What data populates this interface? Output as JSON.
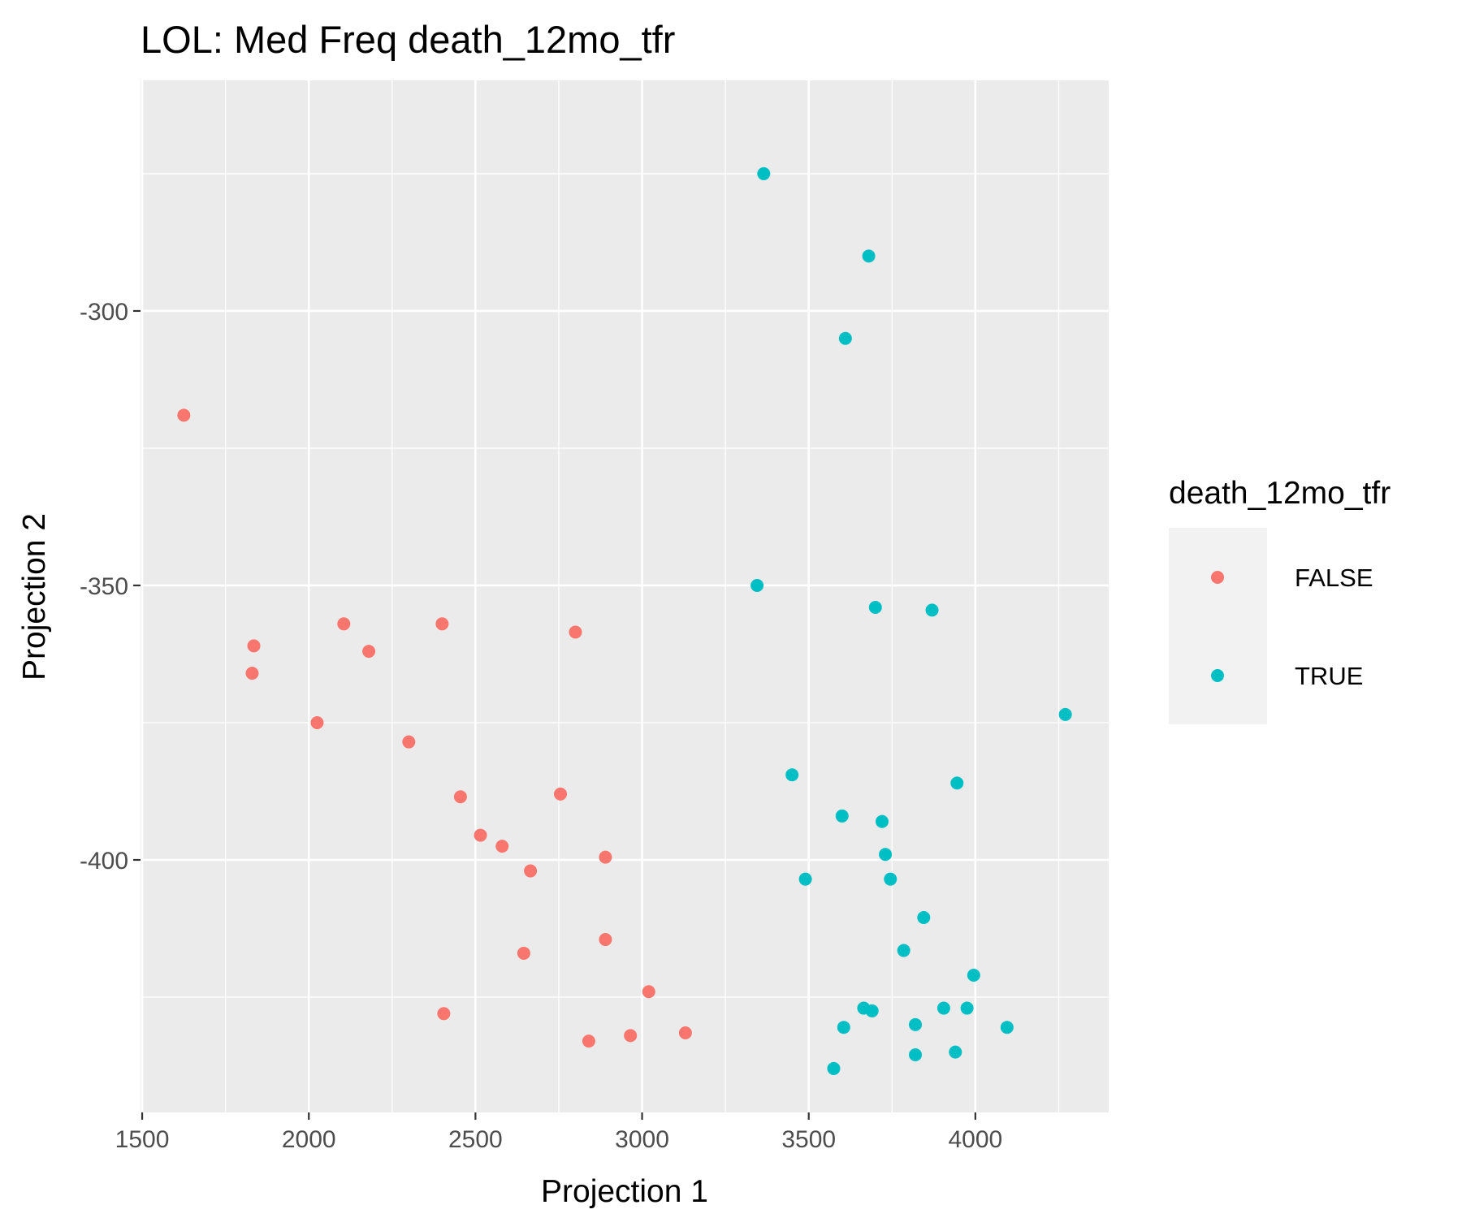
{
  "chart_data": {
    "type": "scatter",
    "title": "LOL: Med Freq death_12mo_tfr",
    "xlabel": "Projection 1",
    "ylabel": "Projection 2",
    "xlim": [
      1495,
      4400
    ],
    "ylim": [
      -446,
      -258
    ],
    "x_ticks": [
      1500,
      2000,
      2500,
      3000,
      3500,
      4000
    ],
    "x_tick_labels": [
      "1500",
      "2000",
      "2500",
      "3000",
      "3500",
      "4000"
    ],
    "y_ticks": [
      -300,
      -350,
      -400
    ],
    "y_tick_labels": [
      "-300",
      "-350",
      "-400"
    ],
    "grid": true,
    "legend": {
      "title": "death_12mo_tfr",
      "position": "right",
      "entries": [
        "FALSE",
        "TRUE"
      ]
    },
    "colors": {
      "FALSE": "#f8766d",
      "TRUE": "#00bfc4"
    },
    "series": [
      {
        "name": "FALSE",
        "points": [
          [
            1625,
            -319
          ],
          [
            1835,
            -361
          ],
          [
            1830,
            -366
          ],
          [
            2105,
            -357
          ],
          [
            2180,
            -362
          ],
          [
            2400,
            -357
          ],
          [
            2800,
            -358.5
          ],
          [
            2025,
            -375
          ],
          [
            2300,
            -378.5
          ],
          [
            2455,
            -388.5
          ],
          [
            2755,
            -388
          ],
          [
            2515,
            -395.5
          ],
          [
            2580,
            -397.5
          ],
          [
            2665,
            -402
          ],
          [
            2890,
            -399.5
          ],
          [
            2890,
            -414.5
          ],
          [
            2645,
            -417
          ],
          [
            3020,
            -424
          ],
          [
            2405,
            -428
          ],
          [
            2840,
            -433
          ],
          [
            2965,
            -432
          ],
          [
            3130,
            -431.5
          ]
        ]
      },
      {
        "name": "TRUE",
        "points": [
          [
            3365,
            -275
          ],
          [
            3680,
            -290
          ],
          [
            3610,
            -305
          ],
          [
            3345,
            -350
          ],
          [
            3700,
            -354
          ],
          [
            3870,
            -354.5
          ],
          [
            4270,
            -373.5
          ],
          [
            3450,
            -384.5
          ],
          [
            3945,
            -386
          ],
          [
            3600,
            -392
          ],
          [
            3720,
            -393
          ],
          [
            3730,
            -399
          ],
          [
            3490,
            -403.5
          ],
          [
            3745,
            -403.5
          ],
          [
            3845,
            -410.5
          ],
          [
            3785,
            -416.5
          ],
          [
            3995,
            -421
          ],
          [
            3665,
            -427
          ],
          [
            3690,
            -427.5
          ],
          [
            3905,
            -427
          ],
          [
            3975,
            -427
          ],
          [
            3605,
            -430.5
          ],
          [
            3820,
            -430
          ],
          [
            4095,
            -430.5
          ],
          [
            3575,
            -438
          ],
          [
            3820,
            -435.5
          ],
          [
            3940,
            -435
          ]
        ]
      }
    ]
  }
}
